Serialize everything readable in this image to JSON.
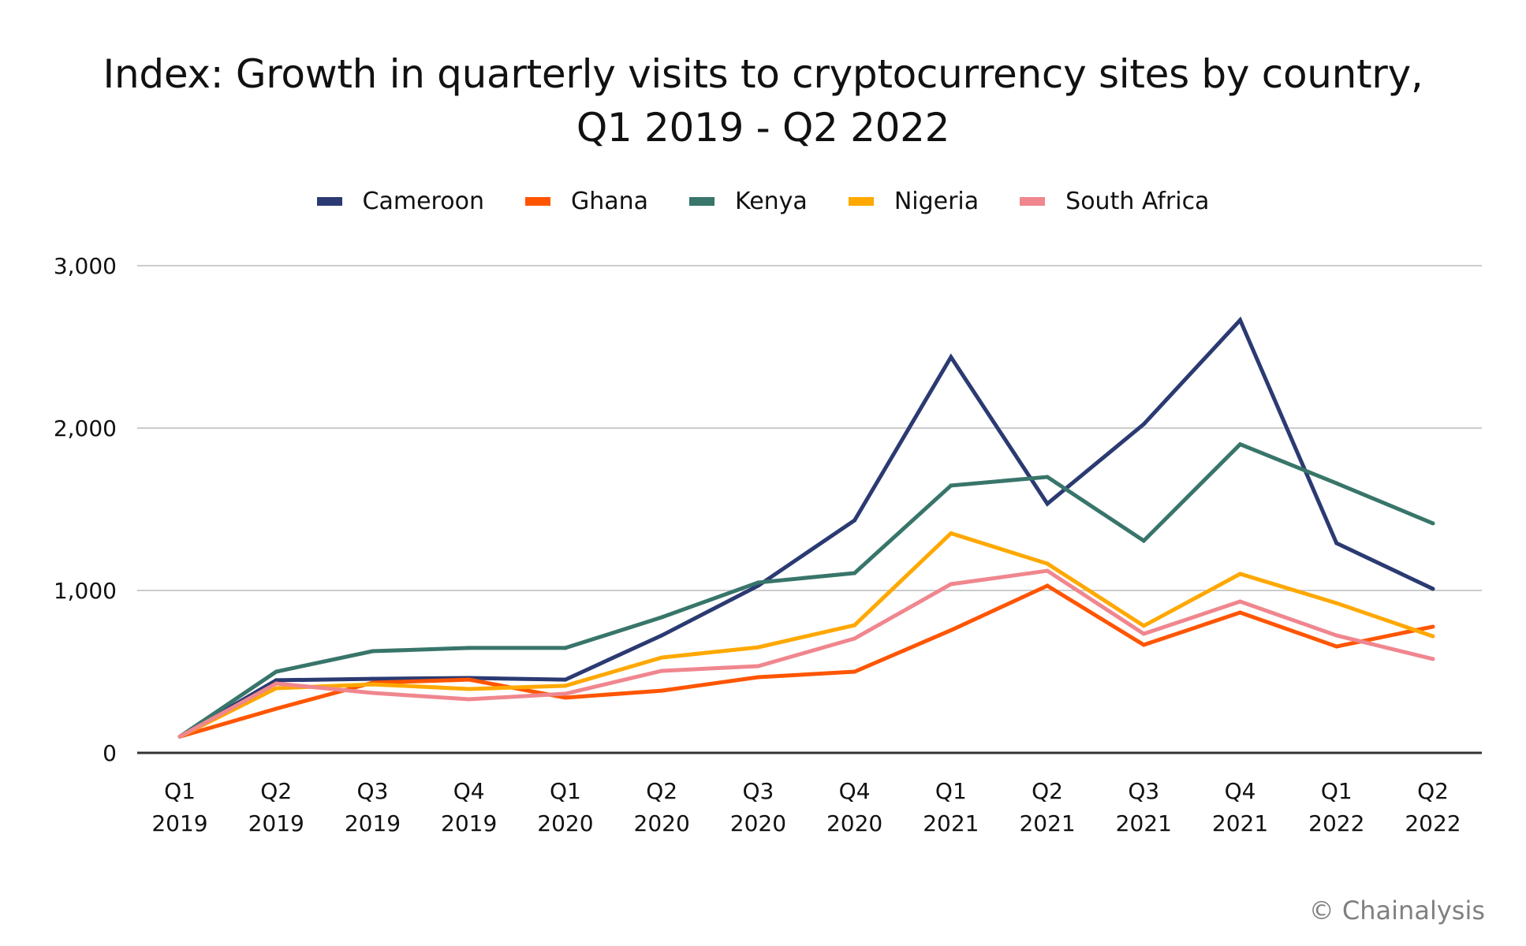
{
  "chart_data": {
    "type": "line",
    "title_lines": [
      "Index: Growth in quarterly visits to cryptocurrency sites by country,",
      "Q1 2019 - Q2 2022"
    ],
    "xlabel": "",
    "ylabel": "",
    "ylim": [
      0,
      3000
    ],
    "yticks": [
      0,
      1000,
      2000,
      3000
    ],
    "ytick_labels": [
      "0",
      "1,000",
      "2,000",
      "3,000"
    ],
    "grid": true,
    "legend_position": "top-center",
    "categories": [
      [
        "Q1",
        "2019"
      ],
      [
        "Q2",
        "2019"
      ],
      [
        "Q3",
        "2019"
      ],
      [
        "Q4",
        "2019"
      ],
      [
        "Q1",
        "2020"
      ],
      [
        "Q2",
        "2020"
      ],
      [
        "Q3",
        "2020"
      ],
      [
        "Q4",
        "2020"
      ],
      [
        "Q1",
        "2021"
      ],
      [
        "Q2",
        "2021"
      ],
      [
        "Q3",
        "2021"
      ],
      [
        "Q4",
        "2021"
      ],
      [
        "Q1",
        "2022"
      ],
      [
        "Q2",
        "2022"
      ]
    ],
    "series": [
      {
        "name": "Cameroon",
        "color": "#2b3a72",
        "values": [
          100,
          447,
          456,
          461,
          451,
          723,
          1029,
          1432,
          2437,
          1534,
          2024,
          2665,
          1291,
          1010
        ]
      },
      {
        "name": "Ghana",
        "color": "#ff5500",
        "values": [
          100,
          272,
          432,
          451,
          340,
          383,
          466,
          500,
          755,
          1029,
          665,
          864,
          655,
          777
        ]
      },
      {
        "name": "Kenya",
        "color": "#38756a",
        "values": [
          100,
          500,
          626,
          646,
          646,
          835,
          1049,
          1107,
          1646,
          1699,
          1306,
          1900,
          1660,
          1413
        ]
      },
      {
        "name": "Nigeria",
        "color": "#ffa800",
        "values": [
          100,
          398,
          422,
          393,
          413,
          587,
          650,
          786,
          1352,
          1165,
          782,
          1102,
          922,
          718
        ]
      },
      {
        "name": "South Africa",
        "color": "#f0868e",
        "values": [
          100,
          427,
          369,
          330,
          364,
          505,
          534,
          704,
          1039,
          1121,
          733,
          932,
          723,
          578
        ]
      }
    ]
  },
  "footer": {
    "copyright": "© Chainalysis"
  }
}
